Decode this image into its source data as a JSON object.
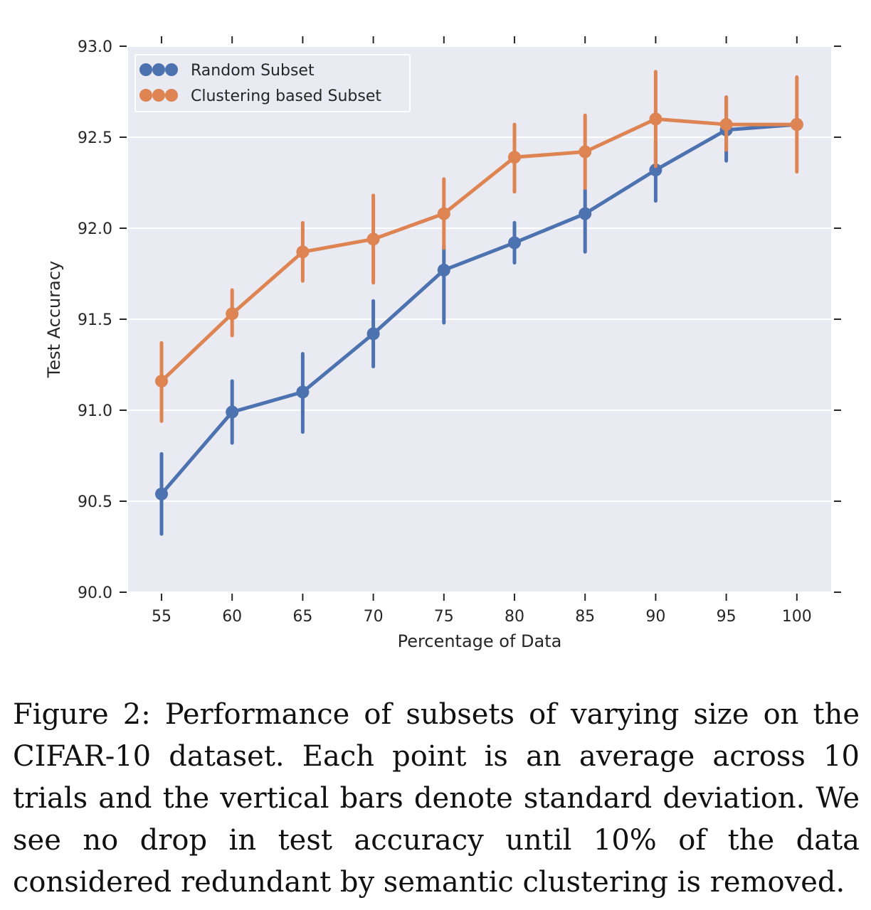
{
  "chart_data": {
    "type": "line",
    "title": "",
    "xlabel": "Percentage of Data",
    "ylabel": "Test Accuracy",
    "categories": [
      "55",
      "60",
      "65",
      "70",
      "75",
      "80",
      "85",
      "90",
      "95",
      "100"
    ],
    "ylim": [
      90.0,
      93.0
    ],
    "yticks": [
      "90.0",
      "90.5",
      "91.0",
      "91.5",
      "92.0",
      "92.5",
      "93.0"
    ],
    "grid": true,
    "legend_position": "top-left",
    "series": [
      {
        "name": "Random Subset",
        "color": "#4c72b0",
        "values": [
          90.54,
          90.99,
          91.1,
          91.42,
          91.77,
          91.92,
          92.08,
          92.32,
          92.54,
          92.57
        ],
        "err_low": [
          90.32,
          90.82,
          90.88,
          91.24,
          91.48,
          91.81,
          91.87,
          92.15,
          92.37,
          92.57
        ],
        "err_high": [
          90.76,
          91.16,
          91.31,
          91.6,
          91.9,
          92.03,
          92.21,
          92.48,
          92.72,
          92.57
        ]
      },
      {
        "name": "Clustering based Subset",
        "color": "#dd8452",
        "values": [
          91.16,
          91.53,
          91.87,
          91.94,
          92.08,
          92.39,
          92.42,
          92.6,
          92.57,
          92.57
        ],
        "err_low": [
          90.94,
          91.41,
          91.71,
          91.7,
          91.89,
          92.2,
          92.22,
          92.34,
          92.43,
          92.31
        ],
        "err_high": [
          91.37,
          91.66,
          92.03,
          92.18,
          92.27,
          92.57,
          92.62,
          92.86,
          92.72,
          92.83
        ]
      }
    ]
  },
  "caption": "Figure 2: Performance of subsets of varying size on the CIFAR-10 dataset. Each point is an average across 10 trials and the vertical bars denote standard deviation. We see no drop in test accuracy until 10% of the data considered redundant by semantic clustering is removed."
}
